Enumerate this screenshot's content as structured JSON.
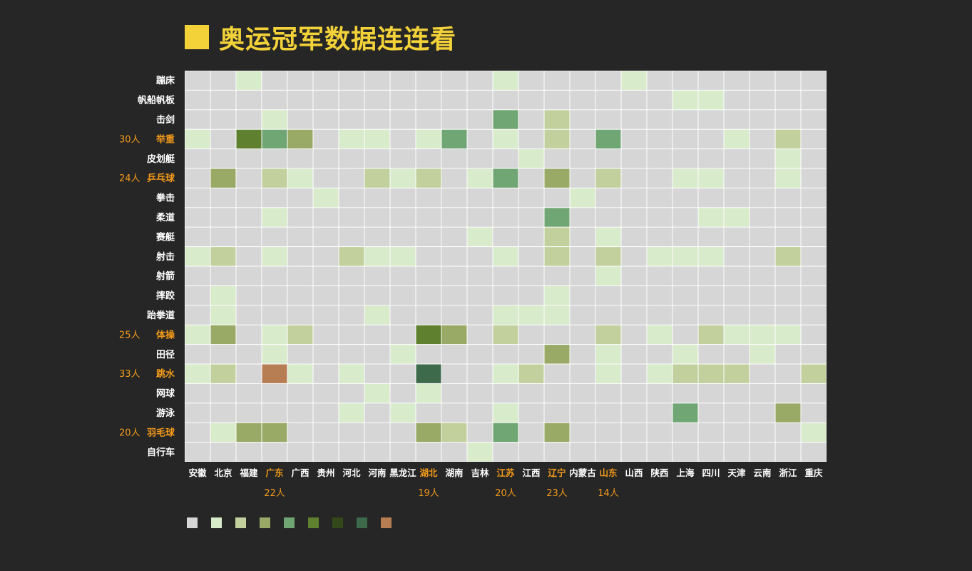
{
  "title": "奥运冠军数据连连看",
  "colors": {
    "background": "#262626",
    "title": "#f3d239",
    "label_default": "#ffffff",
    "label_highlight": "#f29a1a"
  },
  "palette": [
    "#d6d6d6",
    "#d8ebcb",
    "#c1d09d",
    "#98aa66",
    "#6fa673",
    "#5e802f",
    "#34491a",
    "#3e6a4c",
    "#b77d53"
  ],
  "chart_data": {
    "type": "heatmap",
    "title": "奥运冠军数据连连看",
    "sports": [
      "蹦床",
      "帆船帆板",
      "击剑",
      "举重",
      "皮划艇",
      "乒乓球",
      "拳击",
      "柔道",
      "赛艇",
      "射击",
      "射箭",
      "摔跤",
      "跆拳道",
      "体操",
      "田径",
      "跳水",
      "网球",
      "游泳",
      "羽毛球",
      "自行车"
    ],
    "provinces": [
      "安徽",
      "北京",
      "福建",
      "广东",
      "广西",
      "贵州",
      "河北",
      "河南",
      "黑龙江",
      "湖北",
      "湖南",
      "吉林",
      "江苏",
      "江西",
      "辽宁",
      "内蒙古",
      "山东",
      "山西",
      "陕西",
      "上海",
      "四川",
      "天津",
      "云南",
      "浙江",
      "重庆"
    ],
    "sport_totals": [
      {
        "sport": "举重",
        "label": "30人"
      },
      {
        "sport": "乒乓球",
        "label": "24人"
      },
      {
        "sport": "体操",
        "label": "25人"
      },
      {
        "sport": "跳水",
        "label": "33人"
      },
      {
        "sport": "羽毛球",
        "label": "20人"
      }
    ],
    "province_totals": [
      {
        "province": "广东",
        "label": "22人"
      },
      {
        "province": "湖北",
        "label": "19人"
      },
      {
        "province": "江苏",
        "label": "20人"
      },
      {
        "province": "辽宁",
        "label": "23人"
      },
      {
        "province": "山东",
        "label": "14人"
      }
    ],
    "levels": [
      [
        0,
        0,
        1,
        0,
        0,
        0,
        0,
        0,
        0,
        0,
        0,
        0,
        1,
        0,
        0,
        0,
        0,
        1,
        0,
        0,
        0,
        0,
        0,
        0,
        0
      ],
      [
        0,
        0,
        0,
        0,
        0,
        0,
        0,
        0,
        0,
        0,
        0,
        0,
        0,
        0,
        0,
        0,
        0,
        0,
        0,
        1,
        1,
        0,
        0,
        0,
        0
      ],
      [
        0,
        0,
        0,
        1,
        0,
        0,
        0,
        0,
        0,
        0,
        0,
        0,
        4,
        0,
        2,
        0,
        0,
        0,
        0,
        0,
        0,
        0,
        0,
        0,
        0
      ],
      [
        1,
        0,
        5,
        4,
        3,
        0,
        1,
        1,
        0,
        1,
        4,
        0,
        1,
        0,
        2,
        0,
        4,
        0,
        0,
        0,
        0,
        1,
        0,
        2,
        0
      ],
      [
        0,
        0,
        0,
        0,
        0,
        0,
        0,
        0,
        0,
        0,
        0,
        0,
        0,
        1,
        0,
        0,
        0,
        0,
        0,
        0,
        0,
        0,
        0,
        1,
        0
      ],
      [
        0,
        3,
        0,
        2,
        1,
        0,
        0,
        2,
        1,
        2,
        0,
        1,
        4,
        0,
        3,
        0,
        2,
        0,
        0,
        1,
        1,
        0,
        0,
        1,
        0
      ],
      [
        0,
        0,
        0,
        0,
        0,
        1,
        0,
        0,
        0,
        0,
        0,
        0,
        0,
        0,
        0,
        1,
        0,
        0,
        0,
        0,
        0,
        0,
        0,
        0,
        0
      ],
      [
        0,
        0,
        0,
        1,
        0,
        0,
        0,
        0,
        0,
        0,
        0,
        0,
        0,
        0,
        4,
        0,
        0,
        0,
        0,
        0,
        1,
        1,
        0,
        0,
        0
      ],
      [
        0,
        0,
        0,
        0,
        0,
        0,
        0,
        0,
        0,
        0,
        0,
        1,
        0,
        0,
        2,
        0,
        1,
        0,
        0,
        0,
        0,
        0,
        0,
        0,
        0
      ],
      [
        1,
        2,
        0,
        1,
        0,
        0,
        2,
        1,
        1,
        0,
        0,
        0,
        1,
        0,
        2,
        0,
        2,
        0,
        1,
        1,
        1,
        0,
        0,
        2,
        0
      ],
      [
        0,
        0,
        0,
        0,
        0,
        0,
        0,
        0,
        0,
        0,
        0,
        0,
        0,
        0,
        0,
        0,
        1,
        0,
        0,
        0,
        0,
        0,
        0,
        0,
        0
      ],
      [
        0,
        1,
        0,
        0,
        0,
        0,
        0,
        0,
        0,
        0,
        0,
        0,
        0,
        0,
        1,
        0,
        0,
        0,
        0,
        0,
        0,
        0,
        0,
        0,
        0
      ],
      [
        0,
        1,
        0,
        0,
        0,
        0,
        0,
        1,
        0,
        0,
        0,
        0,
        1,
        1,
        1,
        0,
        0,
        0,
        0,
        0,
        0,
        0,
        0,
        0,
        0
      ],
      [
        1,
        3,
        0,
        1,
        2,
        0,
        0,
        0,
        0,
        5,
        3,
        0,
        2,
        0,
        0,
        0,
        2,
        0,
        1,
        0,
        2,
        1,
        1,
        1,
        0
      ],
      [
        0,
        0,
        0,
        1,
        0,
        0,
        0,
        0,
        1,
        0,
        0,
        0,
        0,
        0,
        3,
        0,
        1,
        0,
        0,
        1,
        0,
        0,
        1,
        0,
        0
      ],
      [
        1,
        2,
        0,
        8,
        1,
        0,
        1,
        0,
        0,
        7,
        0,
        0,
        1,
        2,
        0,
        0,
        1,
        0,
        1,
        2,
        2,
        2,
        0,
        0,
        2
      ],
      [
        0,
        0,
        0,
        0,
        0,
        0,
        0,
        1,
        0,
        1,
        0,
        0,
        0,
        0,
        0,
        0,
        0,
        0,
        0,
        0,
        0,
        0,
        0,
        0,
        0
      ],
      [
        0,
        0,
        0,
        0,
        0,
        0,
        1,
        0,
        1,
        0,
        0,
        0,
        1,
        0,
        0,
        0,
        0,
        0,
        0,
        4,
        0,
        0,
        0,
        3,
        0
      ],
      [
        0,
        1,
        3,
        3,
        0,
        0,
        0,
        0,
        0,
        3,
        2,
        0,
        4,
        0,
        3,
        0,
        0,
        0,
        0,
        0,
        0,
        0,
        0,
        0,
        1
      ],
      [
        0,
        0,
        0,
        0,
        0,
        0,
        0,
        0,
        0,
        0,
        0,
        1,
        0,
        0,
        0,
        0,
        0,
        0,
        0,
        0,
        0,
        0,
        0,
        0,
        0
      ]
    ]
  }
}
